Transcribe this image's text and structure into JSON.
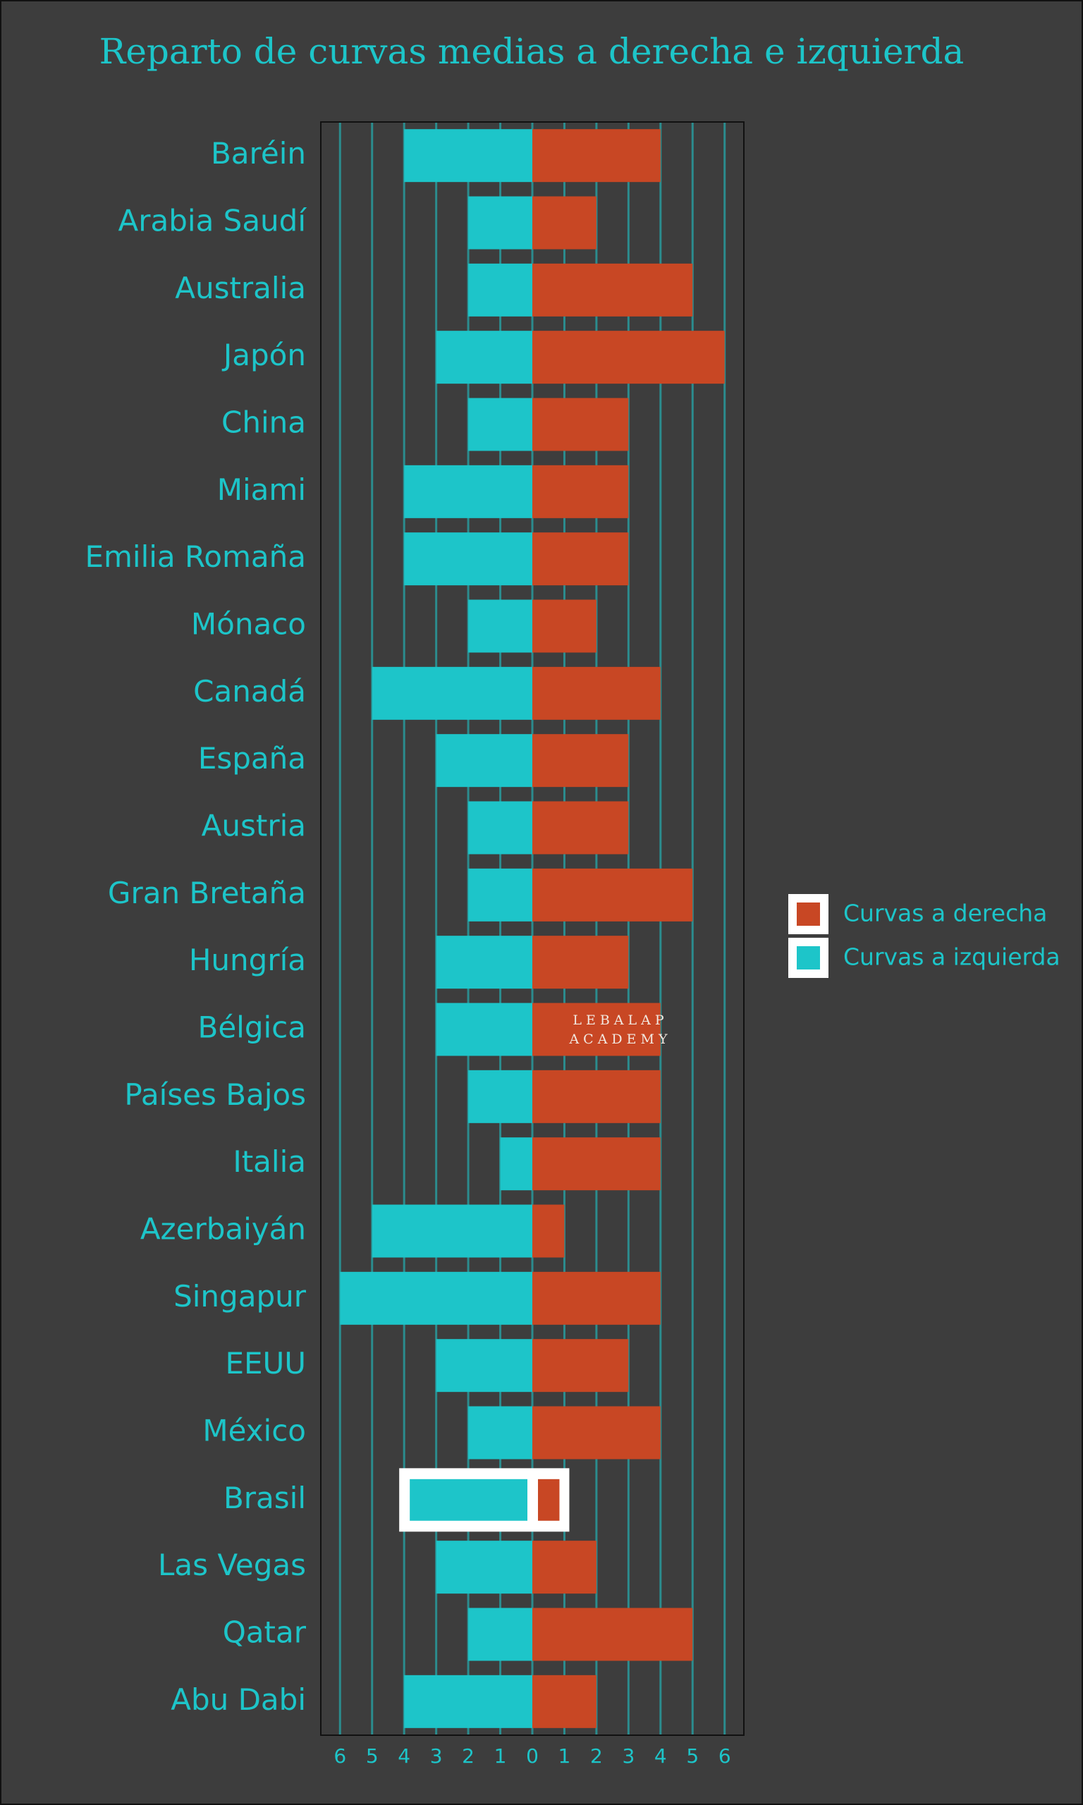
{
  "chart_data": {
    "type": "diverging_bar",
    "title": "Reparto de curvas medias a derecha e izquierda",
    "categories": [
      "Baréin",
      "Arabia Saudí",
      "Australia",
      "Japón",
      "China",
      "Miami",
      "Emilia Romaña",
      "Mónaco",
      "Canadá",
      "España",
      "Austria",
      "Gran Bretaña",
      "Hungría",
      "Bélgica",
      "Países Bajos",
      "Italia",
      "Azerbaiyán",
      "Singapur",
      "EEUU",
      "México",
      "Brasil",
      "Las Vegas",
      "Qatar",
      "Abu Dabi"
    ],
    "series": [
      {
        "name": "Curvas a derecha",
        "color": "#c84724",
        "values": [
          4,
          2,
          5,
          6,
          3,
          3,
          3,
          2,
          4,
          3,
          3,
          5,
          3,
          4,
          4,
          4,
          1,
          4,
          3,
          4,
          1,
          2,
          5,
          2
        ]
      },
      {
        "name": "Curvas a izquierda",
        "color": "#1dc5c9",
        "values": [
          -4,
          -2,
          -2,
          -3,
          -2,
          -4,
          -4,
          -2,
          -5,
          -3,
          -2,
          -2,
          -3,
          -3,
          -2,
          -1,
          -5,
          -6,
          -3,
          -2,
          -4,
          -3,
          -2,
          -4
        ]
      }
    ],
    "xlim": [
      -6.6,
      6.6
    ],
    "xticks": [
      {
        "value": -6,
        "label": "6"
      },
      {
        "value": -5,
        "label": "5"
      },
      {
        "value": -4,
        "label": "4"
      },
      {
        "value": -3,
        "label": "3"
      },
      {
        "value": -2,
        "label": "2"
      },
      {
        "value": -1,
        "label": "1"
      },
      0,
      1,
      2,
      3,
      4,
      5,
      6
    ],
    "grid": true,
    "highlight": "Brasil",
    "legend": "right",
    "watermark": [
      "LEBALAP",
      "ACADEMY"
    ]
  }
}
